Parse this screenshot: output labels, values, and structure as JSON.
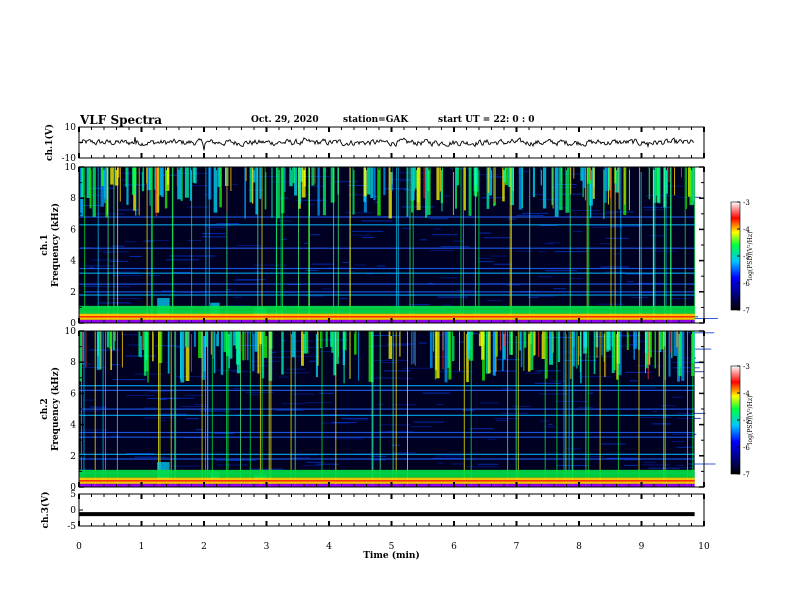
{
  "header": {
    "title": "VLF Spectra",
    "date": "Oct. 29, 2020",
    "station": "station=GAK",
    "start_ut": "start  UT =  22: 0  : 0"
  },
  "chart_data": [
    {
      "type": "line",
      "panel": "ch1-waveform",
      "ylabel": "ch.1(V)",
      "ylim": [
        -10,
        10
      ],
      "yticks": [
        "10",
        "-10"
      ],
      "xlim": [
        0,
        10
      ],
      "baseline": 0,
      "noise_amplitude": 1.5,
      "spikes": [
        {
          "t": 0.9,
          "v": 3.5
        },
        {
          "t": 2.0,
          "v": -5.0
        },
        {
          "t": 3.6,
          "v": 3.0
        },
        {
          "t": 9.1,
          "v": -2.5
        }
      ],
      "data_end_t": 9.85
    },
    {
      "type": "heatmap",
      "panel": "ch1-spectrogram",
      "ylabel": "ch.1\nFrequency (kHz)",
      "ylabel_line1": "ch.1",
      "ylabel_line2": "Frequency (kHz)",
      "ylim": [
        0,
        10
      ],
      "yticks": [
        "0",
        "2",
        "4",
        "6",
        "8",
        "10"
      ],
      "xlim": [
        0,
        10
      ],
      "data_end_t": 9.85,
      "colorbar": {
        "label": "log(PSD)(V²/Hz)",
        "min": -7,
        "max": -3,
        "ticks": [
          "-3",
          "-4",
          "-5",
          "-6",
          "-7"
        ]
      },
      "spectral_lines_khz": [
        0.4,
        0.7,
        1.0,
        1.8,
        2.0,
        2.5,
        3.2,
        3.5,
        4.8,
        6.3,
        6.8
      ],
      "band_patches": [
        {
          "t0": 1.25,
          "t1": 1.45,
          "f": 1.6
        },
        {
          "t0": 2.1,
          "t1": 2.25,
          "f": 1.3
        },
        {
          "t0": 2.8,
          "t1": 3.0,
          "f": 1.0
        }
      ]
    },
    {
      "type": "heatmap",
      "panel": "ch2-spectrogram",
      "ylabel": "ch.2\nFrequency (kHz)",
      "ylabel_line1": "ch.2",
      "ylabel_line2": "Frequency (kHz)",
      "ylim": [
        0,
        10
      ],
      "yticks": [
        "0",
        "2",
        "4",
        "6",
        "8",
        "10"
      ],
      "xlim": [
        0,
        10
      ],
      "data_end_t": 9.85,
      "colorbar": {
        "label": "log(PSD)(V²/Hz)",
        "min": -7,
        "max": -3,
        "ticks": [
          "-3",
          "-4",
          "-5",
          "-6",
          "-7"
        ]
      },
      "spectral_lines_khz": [
        0.5,
        0.9,
        1.8,
        2.1,
        3.2,
        3.5,
        4.6,
        5.0,
        6.2,
        6.5
      ],
      "band_patches": [
        {
          "t0": 1.25,
          "t1": 1.45,
          "f": 1.6
        },
        {
          "t0": 2.1,
          "t1": 2.25,
          "f": 1.0
        },
        {
          "t0": 2.8,
          "t1": 3.0,
          "f": 0.8
        }
      ]
    },
    {
      "type": "line",
      "panel": "ch3-waveform",
      "ylabel": "ch.3(V)",
      "ylim": [
        -5,
        5
      ],
      "yticks": [
        "5",
        "0",
        "-5"
      ],
      "xlim": [
        0,
        10
      ],
      "value": -1.3,
      "data_end_t": 9.85,
      "xlabel": "Time  (min)",
      "xticks": [
        "0",
        "1",
        "2",
        "3",
        "4",
        "5",
        "6",
        "7",
        "8",
        "9",
        "10"
      ]
    }
  ],
  "colors": {
    "spectro_bg": "#000022",
    "waveform": "#000000"
  }
}
